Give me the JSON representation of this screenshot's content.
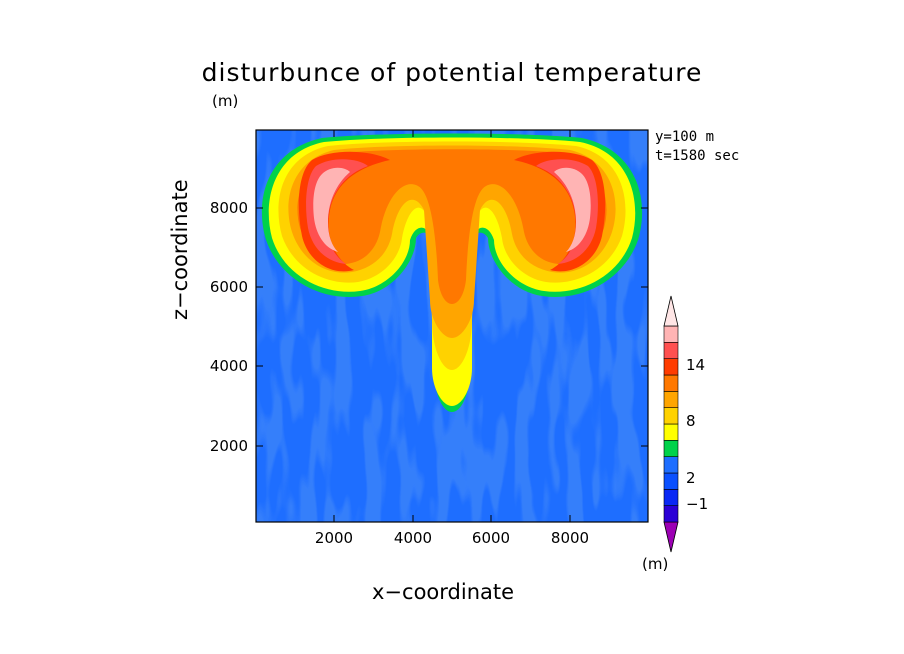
{
  "chart_data": {
    "type": "heatmap",
    "title": "disturbunce of potential temperature",
    "title_unit": "(m)",
    "annotations": [
      "y=100 m",
      "t=1580 sec"
    ],
    "xlabel": "x−coordinate",
    "ylabel": "z−coordinate",
    "xlim": [
      0,
      10000
    ],
    "ylim": [
      0,
      10000
    ],
    "xticks": [
      "2000",
      "4000",
      "6000",
      "8000"
    ],
    "yticks": [
      "2000",
      "4000",
      "6000",
      "8000"
    ],
    "colorbar": {
      "unit": "(m)",
      "labels": [
        "−1",
        "2",
        "8",
        "14"
      ],
      "colors": [
        "#9c00b4",
        "#2b00d6",
        "#0a28f5",
        "#0a50ff",
        "#1e6eff",
        "#00d24a",
        "#ffff00",
        "#ffd200",
        "#ffa500",
        "#ff7800",
        "#ff3c00",
        "#ff5050",
        "#ffb4b4",
        "#ffe6e6"
      ],
      "extend": "both"
    }
  }
}
